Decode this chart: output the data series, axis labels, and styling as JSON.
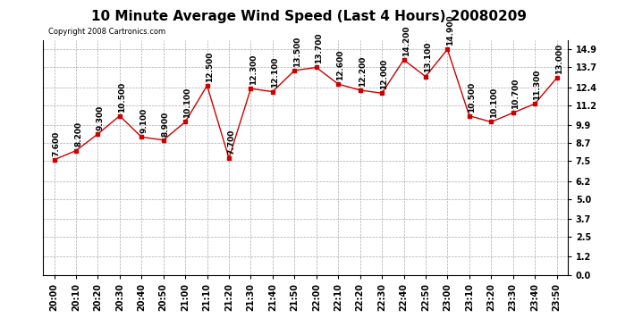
{
  "title": "10 Minute Average Wind Speed (Last 4 Hours) 20080209",
  "copyright": "Copyright 2008 Cartronics.com",
  "x_labels": [
    "20:00",
    "20:10",
    "20:20",
    "20:30",
    "20:40",
    "20:50",
    "21:00",
    "21:10",
    "21:20",
    "21:30",
    "21:40",
    "21:50",
    "22:00",
    "22:10",
    "22:20",
    "22:30",
    "22:40",
    "22:50",
    "23:00",
    "23:10",
    "23:20",
    "23:30",
    "23:40",
    "23:50"
  ],
  "y_values": [
    7.6,
    8.2,
    9.3,
    10.5,
    9.1,
    8.9,
    10.1,
    12.5,
    7.7,
    12.3,
    12.1,
    13.5,
    13.7,
    12.6,
    12.2,
    12.0,
    14.2,
    13.1,
    14.9,
    10.5,
    10.1,
    10.7,
    11.3,
    13.0
  ],
  "line_color": "#cc0000",
  "marker_color": "#cc0000",
  "background_color": "#ffffff",
  "grid_color": "#aaaaaa",
  "yticks": [
    0.0,
    1.2,
    2.5,
    3.7,
    5.0,
    6.2,
    7.5,
    8.7,
    9.9,
    11.2,
    12.4,
    13.7,
    14.9
  ],
  "ylim": [
    0.0,
    15.5
  ],
  "title_fontsize": 11,
  "tick_fontsize": 7,
  "annotation_fontsize": 6.5,
  "copyright_fontsize": 6
}
